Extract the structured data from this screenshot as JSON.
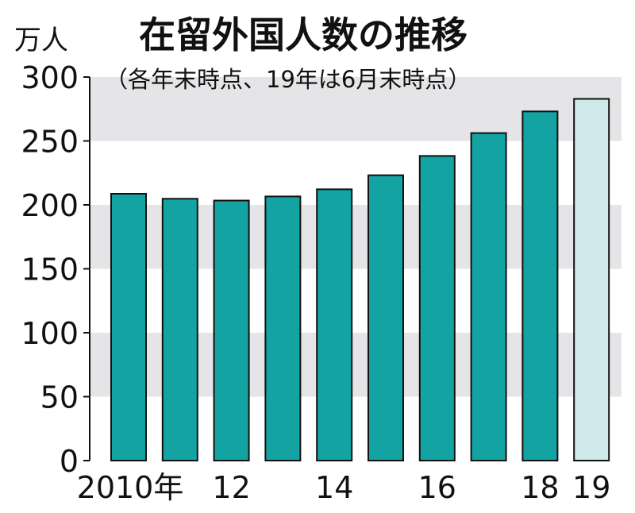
{
  "chart_data": {
    "type": "bar",
    "title": "在留外国人数の推移",
    "subtitle": "（各年末時点、19年は6月末時点）",
    "ylabel": "万人",
    "ylim": [
      0,
      300
    ],
    "yticks": [
      "0",
      "50",
      "100",
      "150",
      "200",
      "250",
      "300"
    ],
    "x": [
      2010,
      2011,
      2012,
      2013,
      2014,
      2015,
      2016,
      2017,
      2018,
      2019
    ],
    "x_tick_labels": [
      "2010年",
      "",
      "12",
      "",
      "14",
      "",
      "16",
      "",
      "18",
      "19"
    ],
    "values": [
      208.7,
      204.8,
      203.4,
      206.6,
      212.2,
      223.2,
      238.3,
      256.2,
      273.1,
      282.9
    ],
    "grid": "alternating horizontal gray bands",
    "colors": {
      "bar": "#13a3a3",
      "bar_highlight": "#cfe8ea",
      "band": "#e5e5e8",
      "outline": "#111111"
    },
    "highlight_index": 9
  }
}
